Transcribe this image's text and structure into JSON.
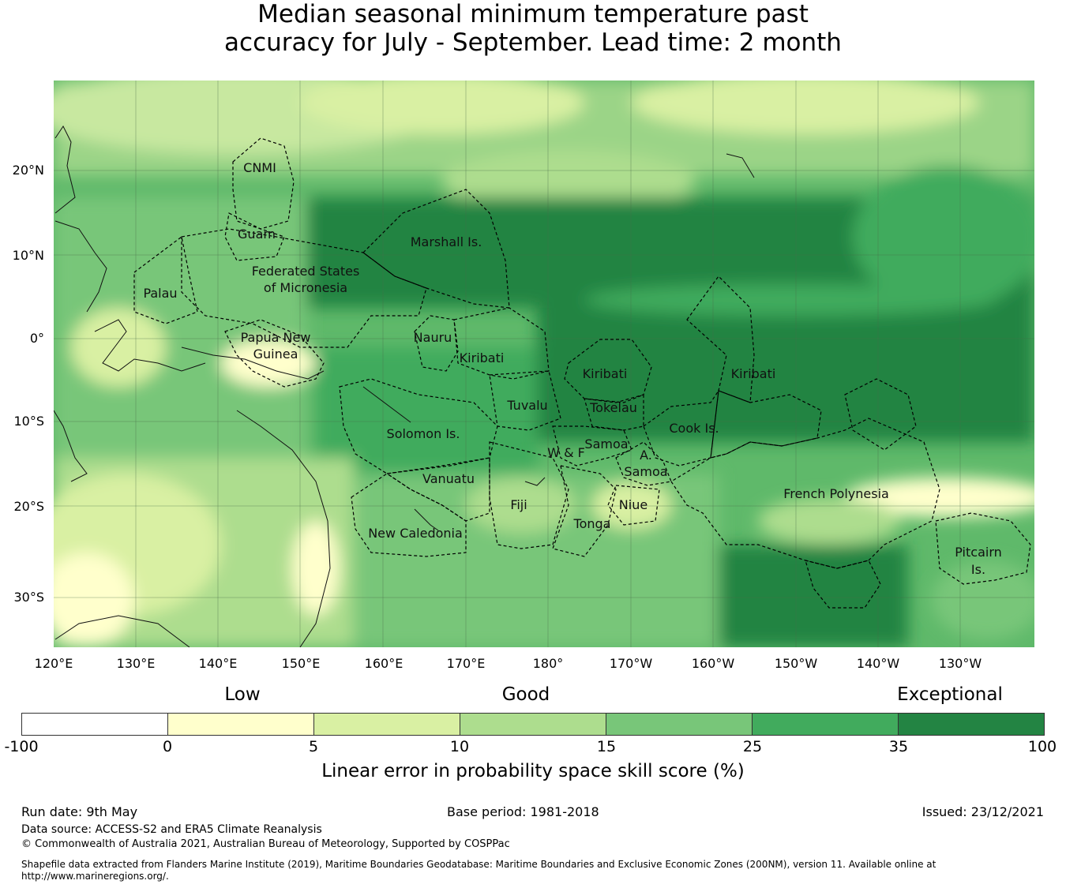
{
  "title_line1": "Median seasonal minimum temperature past",
  "title_line2": "accuracy for July - September. Lead time: 2 month",
  "lat_labels": [
    "20°N",
    "10°N",
    "0°",
    "10°S",
    "20°S",
    "30°S"
  ],
  "lon_labels": [
    "120°E",
    "130°E",
    "140°E",
    "150°E",
    "160°E",
    "170°E",
    "180°",
    "170°W",
    "160°W",
    "150°W",
    "140°W",
    "130°W"
  ],
  "regions": [
    {
      "name": "CNMI"
    },
    {
      "name": "Guam"
    },
    {
      "name": "Marshall Is."
    },
    {
      "name": "Federated States"
    },
    {
      "name": "of Micronesia"
    },
    {
      "name": "Palau"
    },
    {
      "name": "Papua New"
    },
    {
      "name": "Guinea"
    },
    {
      "name": "Nauru"
    },
    {
      "name": "Kiribati"
    },
    {
      "name": "Kiribati"
    },
    {
      "name": "Kiribati"
    },
    {
      "name": "Tuvalu"
    },
    {
      "name": "Tokelau"
    },
    {
      "name": "Solomon Is."
    },
    {
      "name": "Samoa"
    },
    {
      "name": "W & F"
    },
    {
      "name": "A."
    },
    {
      "name": "Samoa"
    },
    {
      "name": "Cook Is."
    },
    {
      "name": "Vanuatu"
    },
    {
      "name": "Fiji"
    },
    {
      "name": "Niue"
    },
    {
      "name": "Tonga"
    },
    {
      "name": "French Polynesia"
    },
    {
      "name": "New Caledonia"
    },
    {
      "name": "Pitcairn"
    },
    {
      "name": "Is."
    }
  ],
  "legend": {
    "categories": [
      "Low",
      "Good",
      "Exceptional"
    ],
    "colors": [
      "#ffffff",
      "#ffffcc",
      "#d9f0a3",
      "#addd8e",
      "#78c679",
      "#41ab5d",
      "#238443"
    ],
    "ticks": [
      "-100",
      "0",
      "5",
      "10",
      "15",
      "25",
      "35",
      "100"
    ],
    "title": "Linear error in probability space skill score (%)"
  },
  "footer": {
    "run_date": "Run date: 9th May",
    "base_period": "Base period: 1981-2018",
    "issued": "Issued: 23/12/2021",
    "data_source": "Data source: ACCESS-S2 and ERA5 Climate Reanalysis",
    "copyright": "© Commonwealth of Australia 2021, Australian Bureau of Meteorology, Supported by COSPPac",
    "shapefile_line1": "Shapefile data extracted from Flanders Marine Institute (2019), Maritime Boundaries Geodatabase: Maritime Boundaries and Exclusive Economic Zones (200NM), version 11. Available online at",
    "shapefile_line2": "http://www.marineregions.org/."
  }
}
